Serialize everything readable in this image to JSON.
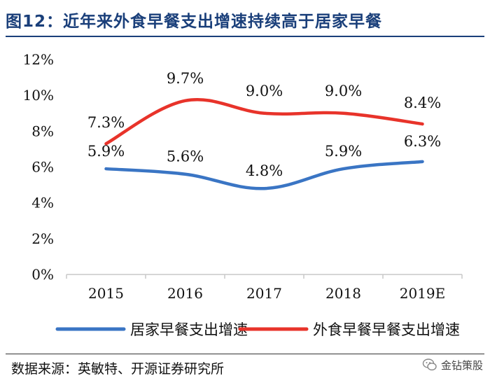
{
  "header": {
    "title": "图12：近年来外食早餐支出增速持续高于居家早餐"
  },
  "footer": {
    "source": "数据来源：英敏特、开源证券研究所",
    "watermark": "金钻策股"
  },
  "chart_data": {
    "type": "line",
    "title": "近年来外食早餐支出增速持续高于居家早餐",
    "categories": [
      "2015",
      "2016",
      "2017",
      "2018",
      "2019E"
    ],
    "ylim": [
      0,
      12
    ],
    "yticks": [
      0,
      2,
      4,
      6,
      8,
      10,
      12
    ],
    "ytick_labels": [
      "0%",
      "2%",
      "4%",
      "6%",
      "8%",
      "10%",
      "12%"
    ],
    "grid": false,
    "legend_position": "bottom",
    "series": [
      {
        "name": "居家早餐支出增速",
        "color": "#3a75c4",
        "values": [
          5.9,
          5.6,
          4.8,
          5.9,
          6.3
        ],
        "labels": [
          "5.9%",
          "5.6%",
          "4.8%",
          "5.9%",
          "6.3%"
        ]
      },
      {
        "name": "外食早餐早餐支出增速",
        "color": "#e8332a",
        "values": [
          7.3,
          9.7,
          9.0,
          9.0,
          8.4
        ],
        "labels": [
          "7.3%",
          "9.7%",
          "9.0%",
          "9.0%",
          "8.4%"
        ]
      }
    ]
  }
}
